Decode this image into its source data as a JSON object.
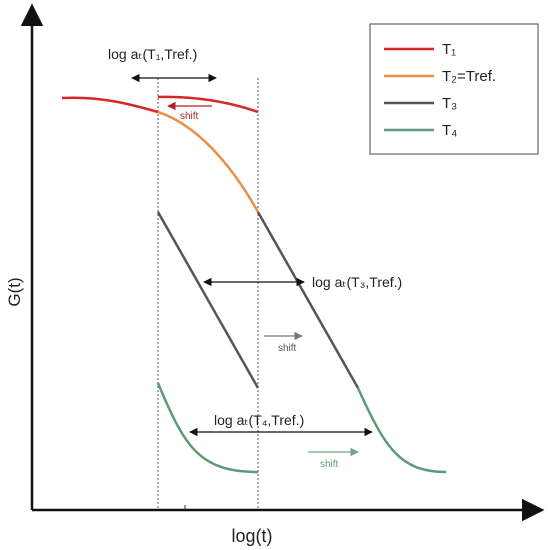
{
  "axes": {
    "y_label": "G(t)",
    "x_label": "log(t)"
  },
  "legend": {
    "items": [
      {
        "label": "T₁",
        "color": "#d62728"
      },
      {
        "label": "T₂=Tref.",
        "color": "#e8904a"
      },
      {
        "label": "T₃",
        "color": "#555555"
      },
      {
        "label": "T₄",
        "color": "#5e9a78"
      }
    ]
  },
  "annotations": {
    "shift_t1": "log aₜ(T₁,Tref.)",
    "shift_t3": "log aₜ(T₃,Tref.)",
    "shift_t4": "log aₜ(T₄,Tref.)",
    "shift_word": "shift"
  },
  "colors": {
    "t1": "#d62728",
    "t2": "#e8904a",
    "t3": "#555555",
    "t4": "#5e9a78",
    "axis": "#111111"
  }
}
